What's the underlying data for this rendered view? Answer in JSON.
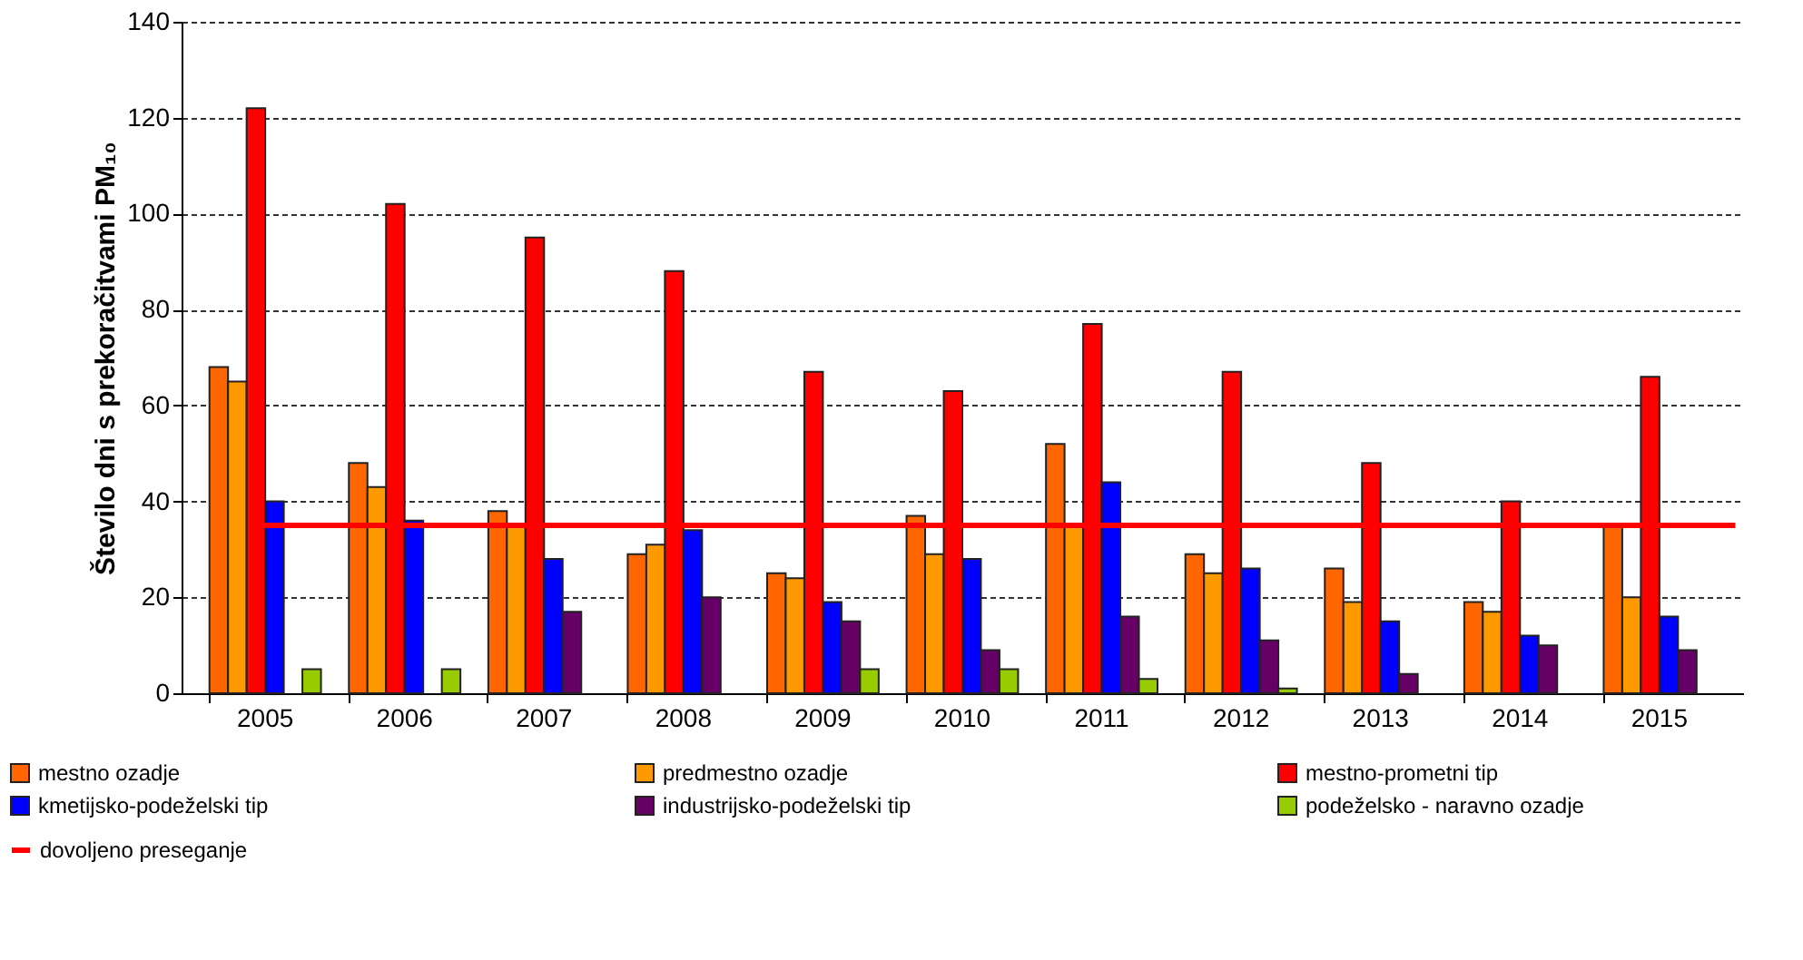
{
  "chart_data": {
    "type": "bar",
    "ylabel": "Število dni s prekoračitvami PM₁₀",
    "categories": [
      "2005",
      "2006",
      "2007",
      "2008",
      "2009",
      "2010",
      "2011",
      "2012",
      "2013",
      "2014",
      "2015"
    ],
    "series": [
      {
        "name": "mestno ozadje",
        "color": "#ff6600",
        "values": [
          68,
          48,
          38,
          29,
          25,
          37,
          52,
          29,
          26,
          19,
          35
        ]
      },
      {
        "name": "predmestno ozadje",
        "color": "#ff9900",
        "values": [
          65,
          43,
          35,
          31,
          24,
          29,
          35,
          25,
          19,
          17,
          20
        ]
      },
      {
        "name": "mestno-prometni tip",
        "color": "#ff0000",
        "values": [
          122,
          102,
          95,
          88,
          67,
          63,
          77,
          67,
          48,
          40,
          66
        ]
      },
      {
        "name": "kmetijsko-podeželski tip",
        "color": "#0000ff",
        "values": [
          40,
          36,
          28,
          34,
          19,
          28,
          44,
          26,
          15,
          12,
          16
        ]
      },
      {
        "name": "industrijsko-podeželski tip",
        "color": "#660066",
        "values": [
          null,
          null,
          17,
          20,
          15,
          9,
          16,
          11,
          4,
          10,
          9
        ]
      },
      {
        "name": "podeželsko - naravno ozadje",
        "color": "#99cc00",
        "values": [
          5,
          5,
          null,
          null,
          5,
          5,
          3,
          1,
          null,
          null,
          null
        ]
      }
    ],
    "ref_lines": [
      {
        "axis": "y",
        "value": 35,
        "label": "dovoljeno preseganje",
        "color": "#ff0000",
        "line_style": "solid"
      }
    ],
    "ylim": [
      0,
      140
    ],
    "yticks": [
      0,
      20,
      40,
      60,
      80,
      100,
      120,
      140
    ],
    "grid": "y",
    "legend": "bottom"
  }
}
